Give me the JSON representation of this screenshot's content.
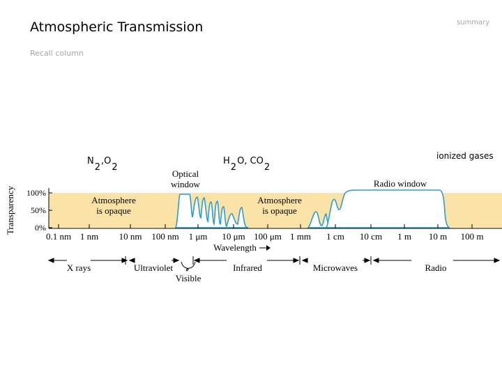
{
  "slide": {
    "title": "Atmospheric Transmission",
    "summary_link": "summary",
    "subtitle": "Recall column"
  },
  "gases": {
    "n2o2": {
      "a": "N",
      "a_sub": "2",
      "sep": ",O",
      "b_sub": "2"
    },
    "h2oco2": {
      "a": "H",
      "a_sub": "2",
      "sep": "O, CO",
      "b_sub": "2"
    },
    "ionized": "ionized gases"
  },
  "diagram": {
    "y_axis_label": "Transparency",
    "y_ticks": [
      "100%",
      "50%",
      "0%"
    ],
    "x_ticks": [
      "0.1 nm",
      "1 nm",
      "10 nm",
      "100 nm",
      "1 μm",
      "10 μm",
      "100 μm",
      "1 mm",
      "1 cm",
      "10 cm",
      "1 m",
      "10 m",
      "100 m"
    ],
    "x_axis_label": "Wavelength",
    "region_labels": {
      "opaque_left": [
        "Atmosphere",
        "is opaque"
      ],
      "optical_window": [
        "Optical",
        "window"
      ],
      "opaque_right": [
        "Atmosphere",
        "is opaque"
      ],
      "radio_window": "Radio window"
    },
    "bands": [
      "X rays",
      "Ultraviolet",
      "Visible",
      "Infrared",
      "Microwaves",
      "Radio"
    ],
    "colors": {
      "opaque_fill": "#fbe2a6",
      "window_fill": "#ffffff",
      "curve": "#2a9fd0"
    }
  }
}
